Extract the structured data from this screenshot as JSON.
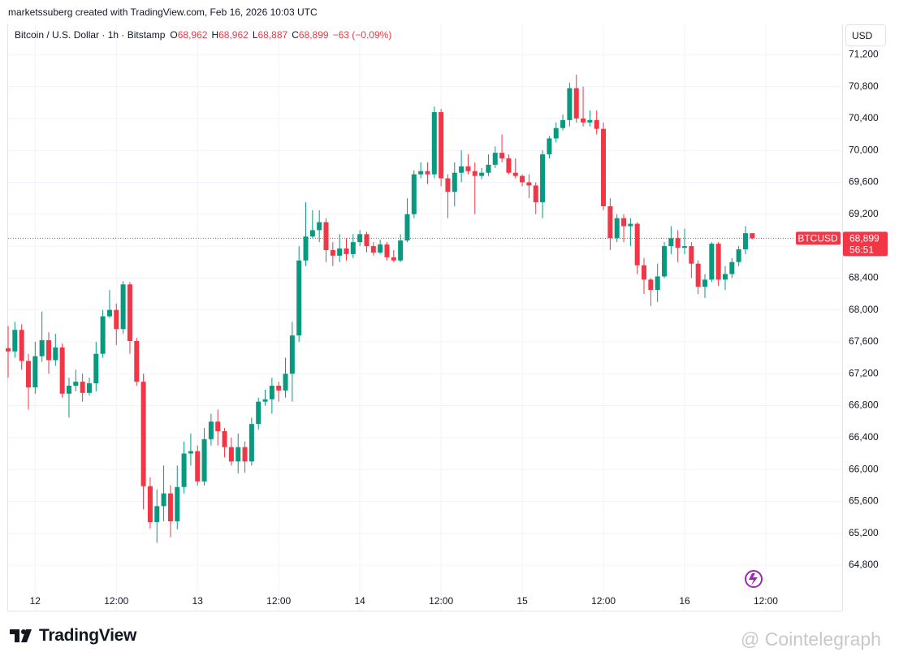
{
  "header": {
    "credit": "marketssuberg created with TradingView.com, Feb 16, 2026 10:03 UTC",
    "currency": "USD"
  },
  "footer": {
    "brand": "TradingView",
    "watermark": "@ Cointelegraph"
  },
  "chart_data": {
    "type": "candlestick",
    "title": "Bitcoin / U.S. Dollar · 1h · Bitstamp",
    "legend": [
      {
        "label": "O",
        "value": "68,962"
      },
      {
        "label": "H",
        "value": "68,962"
      },
      {
        "label": "L",
        "value": "68,887"
      },
      {
        "label": "C",
        "value": "68,899"
      }
    ],
    "change": "−63 (−0.09%)",
    "last_label": {
      "symbol": "BTCUSD",
      "price": "68,899",
      "countdown": "56:51"
    },
    "up_color": "#089981",
    "down_color": "#f23645",
    "grid": true,
    "categories": [
      null,
      null,
      null,
      null,
      "12",
      null,
      null,
      null,
      null,
      null,
      null,
      null,
      null,
      null,
      null,
      null,
      "12:00",
      null,
      null,
      null,
      null,
      null,
      null,
      null,
      null,
      null,
      null,
      null,
      "13",
      null,
      null,
      null,
      null,
      null,
      null,
      null,
      null,
      null,
      null,
      null,
      "12:00",
      null,
      null,
      null,
      null,
      null,
      null,
      null,
      null,
      null,
      null,
      null,
      "14",
      null,
      null,
      null,
      null,
      null,
      null,
      null,
      null,
      null,
      null,
      null,
      "12:00",
      null,
      null,
      null,
      null,
      null,
      null,
      null,
      null,
      null,
      null,
      null,
      "15",
      null,
      null,
      null,
      null,
      null,
      null,
      null,
      null,
      null,
      null,
      null,
      "12:00",
      null,
      null,
      null,
      null,
      null,
      null,
      null,
      null,
      null,
      null,
      null,
      "16",
      null,
      null,
      null,
      null,
      null,
      null,
      null,
      null,
      null,
      null,
      null,
      "12:00"
    ],
    "open": [
      67520,
      67480,
      67750,
      67360,
      67030,
      67420,
      67620,
      67370,
      67530,
      66950,
      67050,
      67100,
      66960,
      67080,
      67450,
      67920,
      68000,
      67760,
      68320,
      67610,
      67100,
      65790,
      65340,
      65540,
      65700,
      65350,
      65780,
      66200,
      66230,
      65850,
      66380,
      66600,
      66480,
      66280,
      66100,
      66280,
      66100,
      66570,
      66850,
      66880,
      67050,
      66990,
      67200,
      67680,
      68620,
      68920,
      69000,
      69100,
      68750,
      68680,
      68770,
      68700,
      68850,
      68950,
      68800,
      68720,
      68820,
      68660,
      68620,
      68870,
      69200,
      69700,
      69740,
      69700,
      70480,
      69650,
      69480,
      69720,
      69800,
      69740,
      69680,
      69720,
      69820,
      69970,
      69900,
      69720,
      69680,
      69600,
      69560,
      69350,
      69950,
      70150,
      70280,
      70380,
      70780,
      70400,
      70350,
      70380,
      70270,
      69300,
      68900,
      69150,
      69050,
      69080,
      68560,
      68380,
      68250,
      68420,
      68800,
      68900,
      68780,
      68800,
      68580,
      68290,
      68380,
      68830,
      68380,
      68450,
      68600,
      68760,
      68962,
      null,
      null
    ],
    "high": [
      67800,
      67850,
      67820,
      67450,
      67600,
      67980,
      67720,
      67700,
      67580,
      67150,
      67250,
      67200,
      67150,
      67600,
      68000,
      68250,
      68080,
      68360,
      68350,
      67650,
      67200,
      65900,
      65750,
      66050,
      65800,
      66050,
      66350,
      66450,
      66300,
      66520,
      66700,
      66750,
      66520,
      66400,
      66450,
      66350,
      66650,
      66900,
      67000,
      67150,
      67100,
      67400,
      67850,
      68800,
      69350,
      69250,
      69250,
      69150,
      68850,
      68950,
      68900,
      68950,
      69000,
      68980,
      68850,
      68880,
      68850,
      68750,
      68950,
      69400,
      69750,
      69850,
      69850,
      70550,
      70520,
      69700,
      69850,
      70000,
      69950,
      69850,
      69780,
      69950,
      70050,
      70200,
      69950,
      69900,
      69700,
      69700,
      69600,
      70000,
      70180,
      70350,
      70450,
      70850,
      70950,
      70800,
      70500,
      70500,
      70350,
      69400,
      69200,
      69200,
      69150,
      69100,
      68650,
      68400,
      68580,
      68850,
      69050,
      69000,
      69020,
      68850,
      68620,
      68450,
      68850,
      68850,
      68550,
      68650,
      68800,
      69050,
      68962,
      null,
      null
    ],
    "low": [
      67150,
      67400,
      67250,
      66750,
      66950,
      67350,
      67200,
      67300,
      66900,
      66650,
      66980,
      66850,
      66930,
      66980,
      67400,
      67900,
      67560,
      67700,
      67450,
      67050,
      65500,
      65260,
      65080,
      65350,
      65150,
      65250,
      65700,
      66050,
      65800,
      65800,
      66300,
      66300,
      66150,
      66050,
      65950,
      65960,
      66050,
      66500,
      66800,
      66700,
      66850,
      66900,
      66850,
      67600,
      68550,
      68900,
      68850,
      68600,
      68550,
      68600,
      68620,
      68650,
      68800,
      68720,
      68680,
      68700,
      68620,
      68600,
      68600,
      68850,
      69150,
      69650,
      69580,
      69650,
      69550,
      69150,
      69300,
      69600,
      69700,
      69200,
      69640,
      69680,
      69780,
      69850,
      69700,
      69650,
      69550,
      69400,
      69200,
      69150,
      69900,
      70100,
      70250,
      70300,
      70350,
      70300,
      70300,
      70200,
      69250,
      68750,
      68850,
      68850,
      68800,
      68450,
      68200,
      68050,
      68100,
      68400,
      68700,
      68600,
      68700,
      68400,
      68200,
      68150,
      68350,
      68300,
      68250,
      68400,
      68550,
      68700,
      68887,
      null,
      null
    ],
    "close": [
      67480,
      67750,
      67360,
      67030,
      67420,
      67620,
      67370,
      67530,
      66950,
      67050,
      67100,
      66960,
      67080,
      67450,
      67920,
      68000,
      67760,
      68320,
      67610,
      67100,
      65790,
      65340,
      65540,
      65700,
      65350,
      65780,
      66200,
      66230,
      65850,
      66380,
      66600,
      66480,
      66280,
      66100,
      66280,
      66100,
      66570,
      66850,
      66880,
      67050,
      66990,
      67200,
      67680,
      68620,
      68920,
      69000,
      69100,
      68750,
      68680,
      68770,
      68700,
      68850,
      68950,
      68800,
      68720,
      68820,
      68660,
      68620,
      68870,
      69200,
      69700,
      69740,
      69700,
      70480,
      69650,
      69480,
      69720,
      69800,
      69740,
      69680,
      69720,
      69820,
      69970,
      69900,
      69720,
      69680,
      69600,
      69560,
      69350,
      69950,
      70150,
      70280,
      70380,
      70780,
      70400,
      70350,
      70380,
      70270,
      69300,
      68900,
      69150,
      69050,
      69080,
      68560,
      68380,
      68250,
      68420,
      68800,
      68900,
      68780,
      68800,
      68580,
      68290,
      68380,
      68830,
      68380,
      68450,
      68600,
      68760,
      68962,
      68899,
      null,
      null
    ],
    "ylim": [
      64230,
      71580
    ],
    "yticks": [
      {
        "value": 64800,
        "label": "64,800"
      },
      {
        "value": 65200,
        "label": "65,200"
      },
      {
        "value": 65600,
        "label": "65,600"
      },
      {
        "value": 66000,
        "label": "66,000"
      },
      {
        "value": 66400,
        "label": "66,400"
      },
      {
        "value": 66800,
        "label": "66,800"
      },
      {
        "value": 67200,
        "label": "67,200"
      },
      {
        "value": 67600,
        "label": "67,600"
      },
      {
        "value": 68000,
        "label": "68,000"
      },
      {
        "value": 68400,
        "label": "68,400"
      },
      {
        "value": 68800,
        "label": "68,800"
      },
      {
        "value": 69200,
        "label": "69,200"
      },
      {
        "value": 69600,
        "label": "69,600"
      },
      {
        "value": 70000,
        "label": "70,000"
      },
      {
        "value": 70400,
        "label": "70,400"
      },
      {
        "value": 70800,
        "label": "70,800"
      },
      {
        "value": 71200,
        "label": "71,200"
      }
    ]
  }
}
